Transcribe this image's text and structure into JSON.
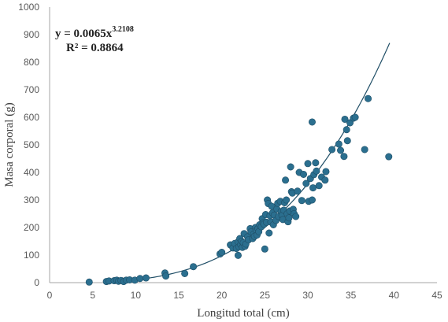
{
  "chart_data": {
    "type": "scatter",
    "title": "",
    "xlabel": "Longitud total (cm)",
    "ylabel": "Masa corporal (g)",
    "xlim": [
      0,
      45
    ],
    "ylim": [
      0,
      1000
    ],
    "xticks": [
      0,
      5,
      10,
      15,
      20,
      25,
      30,
      35,
      40,
      45
    ],
    "yticks": [
      0,
      100,
      200,
      300,
      400,
      500,
      600,
      700,
      800,
      900,
      1000
    ],
    "grid": false,
    "legend": "none",
    "colors": {
      "point_fill": "#2b6f8f",
      "point_stroke": "#1f4e66",
      "trendline": "#1f4e66",
      "axis": "#a6a6a6",
      "tick_text": "#595959"
    },
    "trendline": {
      "type": "power",
      "coefficient": 0.0065,
      "exponent": 3.2108,
      "x_range": [
        7,
        39.5
      ],
      "equation_prefix": "y = 0.0065x",
      "equation_exponent": "3.2108",
      "r_squared_text": "R² = 0.8864"
    },
    "series": [
      {
        "points": [
          [
            4.6,
            2
          ],
          [
            6.6,
            4
          ],
          [
            6.9,
            6
          ],
          [
            7.5,
            7
          ],
          [
            7.8,
            9
          ],
          [
            8.0,
            5
          ],
          [
            8.3,
            8
          ],
          [
            8.6,
            4
          ],
          [
            8.9,
            9
          ],
          [
            9.3,
            10
          ],
          [
            9.9,
            9
          ],
          [
            10.5,
            15
          ],
          [
            11.2,
            17
          ],
          [
            13.4,
            35
          ],
          [
            13.5,
            24
          ],
          [
            15.7,
            33
          ],
          [
            16.7,
            58
          ],
          [
            19.8,
            104
          ],
          [
            20.0,
            110
          ],
          [
            21.0,
            137
          ],
          [
            21.3,
            126
          ],
          [
            21.5,
            142
          ],
          [
            21.7,
            124
          ],
          [
            21.9,
            148
          ],
          [
            21.9,
            99
          ],
          [
            22.0,
            130
          ],
          [
            22.1,
            160
          ],
          [
            22.2,
            138
          ],
          [
            22.3,
            150
          ],
          [
            22.4,
            128
          ],
          [
            22.5,
            145
          ],
          [
            22.6,
            178
          ],
          [
            22.7,
            132
          ],
          [
            22.8,
            140
          ],
          [
            23.0,
            166
          ],
          [
            23.1,
            155
          ],
          [
            23.3,
            196
          ],
          [
            23.4,
            184
          ],
          [
            23.6,
            160
          ],
          [
            23.7,
            176
          ],
          [
            23.8,
            168
          ],
          [
            23.9,
            200
          ],
          [
            24.0,
            189
          ],
          [
            24.1,
            173
          ],
          [
            24.2,
            196
          ],
          [
            24.3,
            185
          ],
          [
            24.4,
            210
          ],
          [
            24.6,
            203
          ],
          [
            24.7,
            232
          ],
          [
            24.8,
            217
          ],
          [
            24.9,
            212
          ],
          [
            25.0,
            122
          ],
          [
            25.1,
            247
          ],
          [
            25.2,
            219
          ],
          [
            25.3,
            300
          ],
          [
            25.4,
            287
          ],
          [
            25.5,
            180
          ],
          [
            25.6,
            243
          ],
          [
            25.7,
            220
          ],
          [
            25.8,
            277
          ],
          [
            25.9,
            253
          ],
          [
            26.0,
            210
          ],
          [
            26.1,
            245
          ],
          [
            26.3,
            226
          ],
          [
            26.4,
            267
          ],
          [
            26.5,
            288
          ],
          [
            26.6,
            240
          ],
          [
            26.8,
            295
          ],
          [
            26.9,
            258
          ],
          [
            27.0,
            244
          ],
          [
            27.1,
            229
          ],
          [
            27.2,
            263
          ],
          [
            27.3,
            290
          ],
          [
            27.4,
            372
          ],
          [
            27.5,
            300
          ],
          [
            27.6,
            250
          ],
          [
            27.7,
            221
          ],
          [
            27.8,
            235
          ],
          [
            27.9,
            260
          ],
          [
            28.0,
            420
          ],
          [
            28.1,
            330
          ],
          [
            28.2,
            325
          ],
          [
            28.3,
            266
          ],
          [
            28.4,
            250
          ],
          [
            28.6,
            240
          ],
          [
            28.8,
            332
          ],
          [
            29.0,
            400
          ],
          [
            29.3,
            298
          ],
          [
            29.5,
            393
          ],
          [
            29.8,
            360
          ],
          [
            30.0,
            432
          ],
          [
            30.1,
            295
          ],
          [
            30.3,
            378
          ],
          [
            30.5,
            583
          ],
          [
            30.5,
            300
          ],
          [
            30.6,
            344
          ],
          [
            30.7,
            392
          ],
          [
            30.9,
            435
          ],
          [
            31.0,
            405
          ],
          [
            31.3,
            352
          ],
          [
            31.6,
            383
          ],
          [
            32.0,
            372
          ],
          [
            32.1,
            403
          ],
          [
            32.8,
            483
          ],
          [
            33.6,
            503
          ],
          [
            33.8,
            480
          ],
          [
            34.2,
            458
          ],
          [
            34.3,
            593
          ],
          [
            34.5,
            555
          ],
          [
            34.6,
            515
          ],
          [
            34.9,
            580
          ],
          [
            35.3,
            597
          ],
          [
            35.5,
            600
          ],
          [
            36.6,
            483
          ],
          [
            37.0,
            668
          ],
          [
            39.4,
            457
          ]
        ]
      }
    ]
  }
}
